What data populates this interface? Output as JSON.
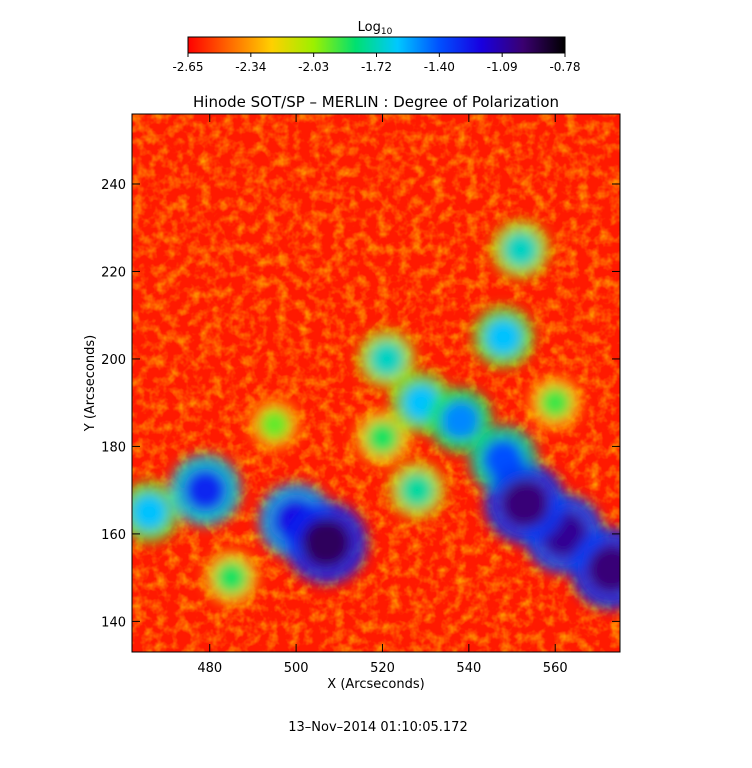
{
  "chart_data": {
    "type": "heatmap",
    "title": "Hinode SOT/SP – MERLIN : Degree of Polarization",
    "xlabel": "X (Arcseconds)",
    "ylabel": "Y (Arcseconds)",
    "xlim": [
      462,
      575
    ],
    "ylim": [
      133,
      256
    ],
    "x_ticks": [
      480,
      500,
      520,
      540,
      560
    ],
    "y_ticks": [
      140,
      160,
      180,
      200,
      220,
      240
    ],
    "colorbar": {
      "label_base": "Log",
      "label_sub": "10",
      "ticks": [
        "-2.65",
        "-2.34",
        "-2.03",
        "-1.72",
        "-1.40",
        "-1.09",
        "-0.78"
      ],
      "range": [
        -2.65,
        -0.78
      ],
      "colors": [
        "#ff0000",
        "#ff6a00",
        "#ffd000",
        "#9cf000",
        "#00e070",
        "#00c8ff",
        "#0050ff",
        "#1800e0",
        "#3a0070",
        "#000000"
      ]
    },
    "features": [
      {
        "name": "blob",
        "x": 507,
        "y": 158,
        "value": -0.95
      },
      {
        "name": "blob",
        "x": 500,
        "y": 163,
        "value": -1.2
      },
      {
        "name": "blob",
        "x": 479,
        "y": 170,
        "value": -1.3
      },
      {
        "name": "blob",
        "x": 553,
        "y": 167,
        "value": -1.0
      },
      {
        "name": "blob",
        "x": 562,
        "y": 160,
        "value": -1.05
      },
      {
        "name": "blob",
        "x": 573,
        "y": 152,
        "value": -1.0
      },
      {
        "name": "blob",
        "x": 548,
        "y": 177,
        "value": -1.4
      },
      {
        "name": "blob",
        "x": 538,
        "y": 186,
        "value": -1.5
      },
      {
        "name": "blob",
        "x": 529,
        "y": 190,
        "value": -1.6
      },
      {
        "name": "blob",
        "x": 521,
        "y": 200,
        "value": -1.7
      },
      {
        "name": "blob",
        "x": 548,
        "y": 205,
        "value": -1.6
      },
      {
        "name": "blob",
        "x": 552,
        "y": 225,
        "value": -1.7
      },
      {
        "name": "blob",
        "x": 466,
        "y": 165,
        "value": -1.6
      },
      {
        "name": "blob",
        "x": 528,
        "y": 170,
        "value": -1.75
      },
      {
        "name": "blob",
        "x": 520,
        "y": 182,
        "value": -1.85
      },
      {
        "name": "blob",
        "x": 495,
        "y": 185,
        "value": -1.95
      },
      {
        "name": "blob",
        "x": 560,
        "y": 190,
        "value": -1.9
      },
      {
        "name": "blob",
        "x": 485,
        "y": 150,
        "value": -1.85
      }
    ]
  },
  "footer": {
    "timestamp": "13–Nov–2014 01:10:05.172"
  }
}
